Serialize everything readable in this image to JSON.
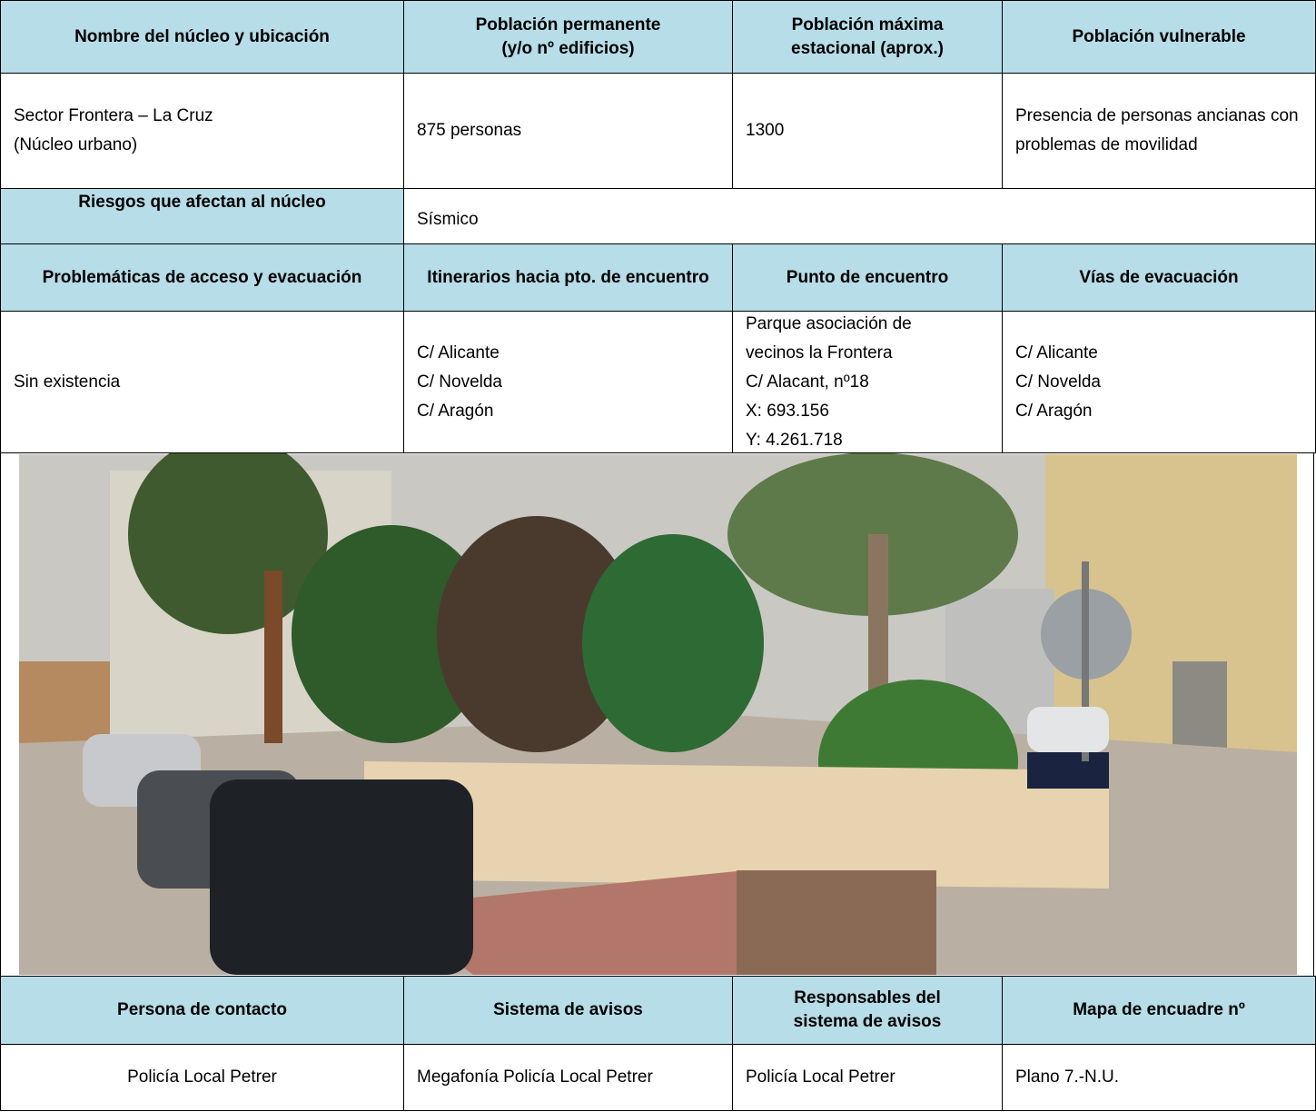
{
  "table": {
    "rows": [
      [
        [
          "Nombre del núcleo y ubicación"
        ],
        [
          "Población permanente",
          "(y/o nº edificios)"
        ],
        [
          "Población máxima",
          "estacional (aprox.)"
        ],
        [
          "Población vulnerable"
        ]
      ],
      [
        [
          "Sector Frontera – La Cruz",
          "(Núcleo urbano)"
        ],
        [
          "875 personas"
        ],
        [
          "1300"
        ],
        [
          "Presencia de personas ancianas con problemas de movilidad"
        ]
      ],
      [
        [
          "Riesgos que afectan al núcleo"
        ],
        [
          "Sísmico"
        ]
      ],
      [
        [
          "Problemáticas de acceso y evacuación"
        ],
        [
          "Itinerarios hacia pto. de encuentro"
        ],
        [
          "Punto de encuentro"
        ],
        [
          "Vías de evacuación"
        ]
      ],
      [
        [
          "Sin existencia"
        ],
        [
          "C/ Alicante",
          "C/ Novelda",
          "C/ Aragón"
        ],
        [
          "Parque asociación de",
          "vecinos la Frontera",
          "C/ Alacant, nº18",
          "X: 693.156",
          "Y: 4.261.718"
        ],
        [
          "C/ Alicante",
          "C/ Novelda",
          "C/ Aragón"
        ]
      ],
      [
        [
          "Persona de contacto"
        ],
        [
          "Sistema de avisos"
        ],
        [
          "Responsables del",
          "sistema de avisos"
        ],
        [
          "Mapa de encuadre nº"
        ]
      ],
      [
        [
          "Policía Local Petrer"
        ],
        [
          "Megafonía Policía Local Petrer"
        ],
        [
          "Policía Local Petrer"
        ],
        [
          "Plano 7.-N.U."
        ]
      ]
    ]
  }
}
